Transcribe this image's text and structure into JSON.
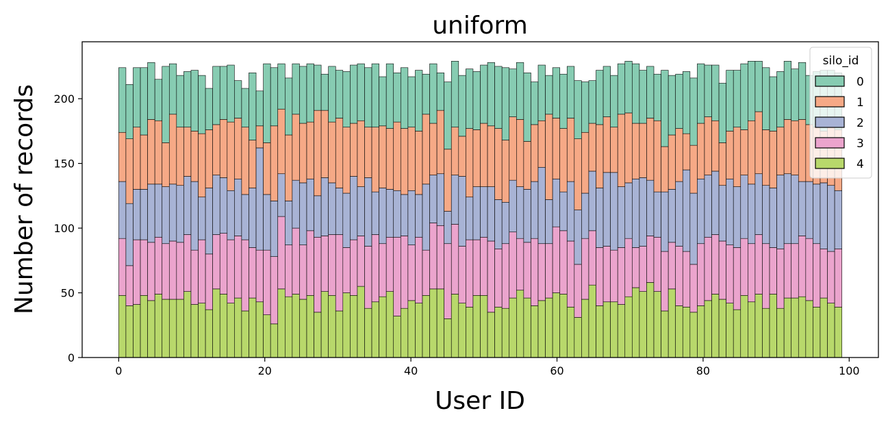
{
  "chart_data": {
    "type": "bar",
    "stacked": true,
    "title": "uniform",
    "xlabel": "User ID",
    "ylabel": "Number of records",
    "xlim": [
      -5,
      104
    ],
    "ylim": [
      0,
      244
    ],
    "xticks": [
      0,
      20,
      40,
      60,
      80,
      100
    ],
    "yticks": [
      0,
      50,
      100,
      150,
      200
    ],
    "bins": {
      "start": 0,
      "width": 0.99,
      "count": 100
    },
    "legend": {
      "title": "silo_id",
      "position": "top-right"
    },
    "series": [
      {
        "name": "4",
        "color": "#b8d86b"
      },
      {
        "name": "3",
        "color": "#eba4cd"
      },
      {
        "name": "2",
        "color": "#a8b3d5"
      },
      {
        "name": "1",
        "color": "#f6a986"
      },
      {
        "name": "0",
        "color": "#87ccb2"
      }
    ],
    "legend_order": [
      "0",
      "1",
      "2",
      "3",
      "4"
    ],
    "cumulative": [
      [
        48,
        92,
        136,
        174,
        224
      ],
      [
        40,
        71,
        119,
        169,
        211
      ],
      [
        41,
        91,
        130,
        178,
        224
      ],
      [
        48,
        91,
        130,
        172,
        224
      ],
      [
        44,
        89,
        134,
        184,
        228
      ],
      [
        49,
        93,
        134,
        183,
        215
      ],
      [
        45,
        88,
        132,
        166,
        225
      ],
      [
        45,
        90,
        134,
        188,
        227
      ],
      [
        45,
        89,
        133,
        178,
        218
      ],
      [
        51,
        95,
        140,
        178,
        221
      ],
      [
        41,
        83,
        136,
        175,
        222
      ],
      [
        42,
        91,
        124,
        173,
        218
      ],
      [
        37,
        80,
        131,
        176,
        208
      ],
      [
        53,
        95,
        141,
        180,
        225
      ],
      [
        49,
        96,
        139,
        184,
        225
      ],
      [
        42,
        91,
        129,
        182,
        226
      ],
      [
        46,
        94,
        138,
        185,
        214
      ],
      [
        36,
        91,
        126,
        178,
        208
      ],
      [
        46,
        85,
        131,
        168,
        220
      ],
      [
        43,
        83,
        162,
        179,
        206
      ],
      [
        33,
        83,
        126,
        166,
        227
      ],
      [
        26,
        78,
        121,
        179,
        224
      ],
      [
        53,
        109,
        142,
        192,
        227
      ],
      [
        47,
        87,
        121,
        172,
        216
      ],
      [
        49,
        100,
        137,
        188,
        227
      ],
      [
        45,
        87,
        135,
        181,
        225
      ],
      [
        48,
        98,
        138,
        182,
        227
      ],
      [
        35,
        93,
        125,
        191,
        226
      ],
      [
        51,
        94,
        139,
        191,
        219
      ],
      [
        48,
        95,
        135,
        182,
        225
      ],
      [
        36,
        95,
        131,
        185,
        222
      ],
      [
        50,
        85,
        127,
        178,
        221
      ],
      [
        48,
        91,
        140,
        181,
        226
      ],
      [
        55,
        94,
        132,
        183,
        227
      ],
      [
        38,
        86,
        139,
        178,
        224
      ],
      [
        43,
        95,
        128,
        178,
        227
      ],
      [
        47,
        88,
        131,
        179,
        217
      ],
      [
        51,
        93,
        130,
        177,
        227
      ],
      [
        32,
        93,
        129,
        182,
        220
      ],
      [
        38,
        94,
        126,
        177,
        224
      ],
      [
        44,
        87,
        129,
        178,
        217
      ],
      [
        42,
        93,
        126,
        175,
        222
      ],
      [
        48,
        83,
        134,
        188,
        219
      ],
      [
        53,
        104,
        141,
        181,
        227
      ],
      [
        53,
        102,
        142,
        191,
        220
      ],
      [
        30,
        88,
        113,
        161,
        213
      ],
      [
        49,
        103,
        141,
        178,
        229
      ],
      [
        42,
        86,
        140,
        171,
        218
      ],
      [
        39,
        91,
        124,
        177,
        223
      ],
      [
        48,
        91,
        132,
        176,
        221
      ],
      [
        48,
        93,
        132,
        181,
        226
      ],
      [
        35,
        90,
        132,
        179,
        228
      ],
      [
        39,
        84,
        122,
        177,
        225
      ],
      [
        38,
        88,
        120,
        168,
        224
      ],
      [
        46,
        97,
        137,
        186,
        223
      ],
      [
        52,
        92,
        132,
        184,
        228
      ],
      [
        46,
        89,
        130,
        167,
        220
      ],
      [
        40,
        92,
        136,
        180,
        213
      ],
      [
        44,
        88,
        147,
        183,
        226
      ],
      [
        46,
        88,
        122,
        188,
        218
      ],
      [
        50,
        101,
        138,
        185,
        224
      ],
      [
        49,
        98,
        128,
        177,
        219
      ],
      [
        39,
        90,
        136,
        185,
        225
      ],
      [
        31,
        72,
        114,
        169,
        214
      ],
      [
        45,
        92,
        127,
        174,
        213
      ],
      [
        56,
        98,
        144,
        181,
        214
      ],
      [
        40,
        85,
        131,
        180,
        222
      ],
      [
        43,
        86,
        143,
        186,
        225
      ],
      [
        43,
        83,
        143,
        178,
        218
      ],
      [
        41,
        85,
        132,
        188,
        227
      ],
      [
        47,
        92,
        135,
        189,
        229
      ],
      [
        54,
        85,
        138,
        181,
        227
      ],
      [
        51,
        86,
        139,
        181,
        222
      ],
      [
        58,
        94,
        137,
        185,
        225
      ],
      [
        51,
        93,
        128,
        183,
        219
      ],
      [
        36,
        82,
        128,
        163,
        222
      ],
      [
        53,
        89,
        130,
        172,
        218
      ],
      [
        40,
        86,
        136,
        177,
        219
      ],
      [
        39,
        82,
        145,
        173,
        221
      ],
      [
        35,
        72,
        127,
        164,
        216
      ],
      [
        40,
        88,
        138,
        181,
        227
      ],
      [
        44,
        93,
        141,
        186,
        226
      ],
      [
        49,
        95,
        144,
        183,
        226
      ],
      [
        45,
        90,
        133,
        166,
        212
      ],
      [
        42,
        87,
        138,
        175,
        222
      ],
      [
        37,
        85,
        132,
        178,
        222
      ],
      [
        48,
        92,
        141,
        176,
        227
      ],
      [
        43,
        88,
        134,
        183,
        229
      ],
      [
        49,
        95,
        142,
        190,
        229
      ],
      [
        38,
        88,
        133,
        176,
        224
      ],
      [
        49,
        85,
        131,
        175,
        217
      ],
      [
        38,
        84,
        141,
        178,
        221
      ],
      [
        46,
        88,
        142,
        184,
        229
      ],
      [
        46,
        88,
        141,
        183,
        223
      ],
      [
        47,
        94,
        136,
        184,
        228
      ],
      [
        44,
        92,
        136,
        180,
        218
      ],
      [
        39,
        88,
        134,
        178,
        221
      ],
      [
        46,
        84,
        135,
        175,
        222
      ],
      [
        42,
        82,
        133,
        179,
        222
      ],
      [
        39,
        84,
        129,
        176,
        220
      ]
    ]
  }
}
